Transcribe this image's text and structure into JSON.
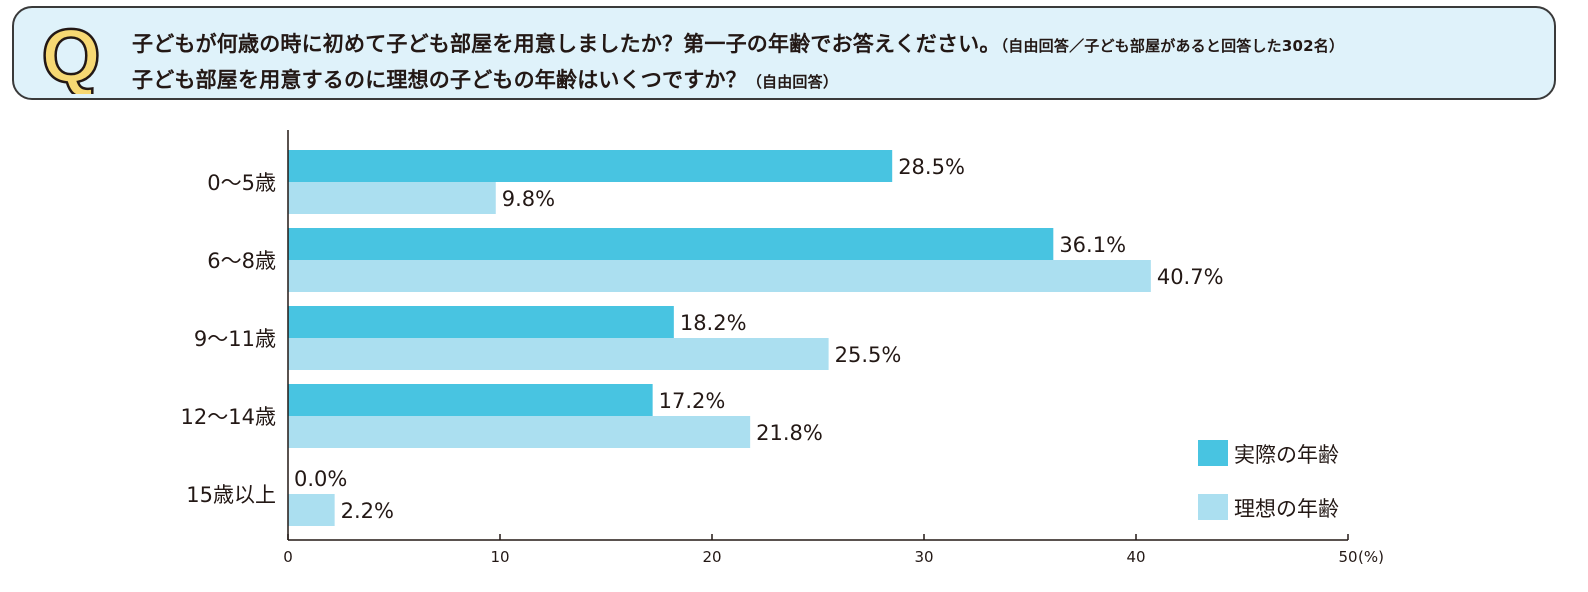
{
  "question": {
    "icon_letter": "Q",
    "line1": "子どもが何歳の時に初めて子ども部屋を用意しましたか？第一子の年齢でお答えください。",
    "line1_note": "（自由回答／子ども部屋があると回答した302名）",
    "line2": "子ども部屋を用意するのに理想の子どもの年齢はいくつですか？",
    "line2_note": "（自由回答）"
  },
  "colors": {
    "series1": "#48c4e1",
    "series2": "#abdff0",
    "question_bg": "#dff2fa",
    "icon_fill": "#f7d873"
  },
  "chart_data": {
    "type": "bar",
    "orientation": "horizontal",
    "categories": [
      "0〜5歳",
      "6〜8歳",
      "9〜11歳",
      "12〜14歳",
      "15歳以上"
    ],
    "series": [
      {
        "name": "実際の年齢",
        "values": [
          28.5,
          36.1,
          18.2,
          17.2,
          0.0
        ]
      },
      {
        "name": "理想の年齢",
        "values": [
          9.8,
          40.7,
          25.5,
          21.8,
          2.2
        ]
      }
    ],
    "value_labels": [
      [
        "28.5%",
        "36.1%",
        "18.2%",
        "17.2%",
        "0.0%"
      ],
      [
        "9.8%",
        "40.7%",
        "25.5%",
        "21.8%",
        "2.2%"
      ]
    ],
    "xlim": [
      0,
      50
    ],
    "xticks": [
      0,
      10,
      20,
      30,
      40,
      50
    ],
    "x_unit": "(%)",
    "legend_position": "bottom-right",
    "grid": false
  }
}
